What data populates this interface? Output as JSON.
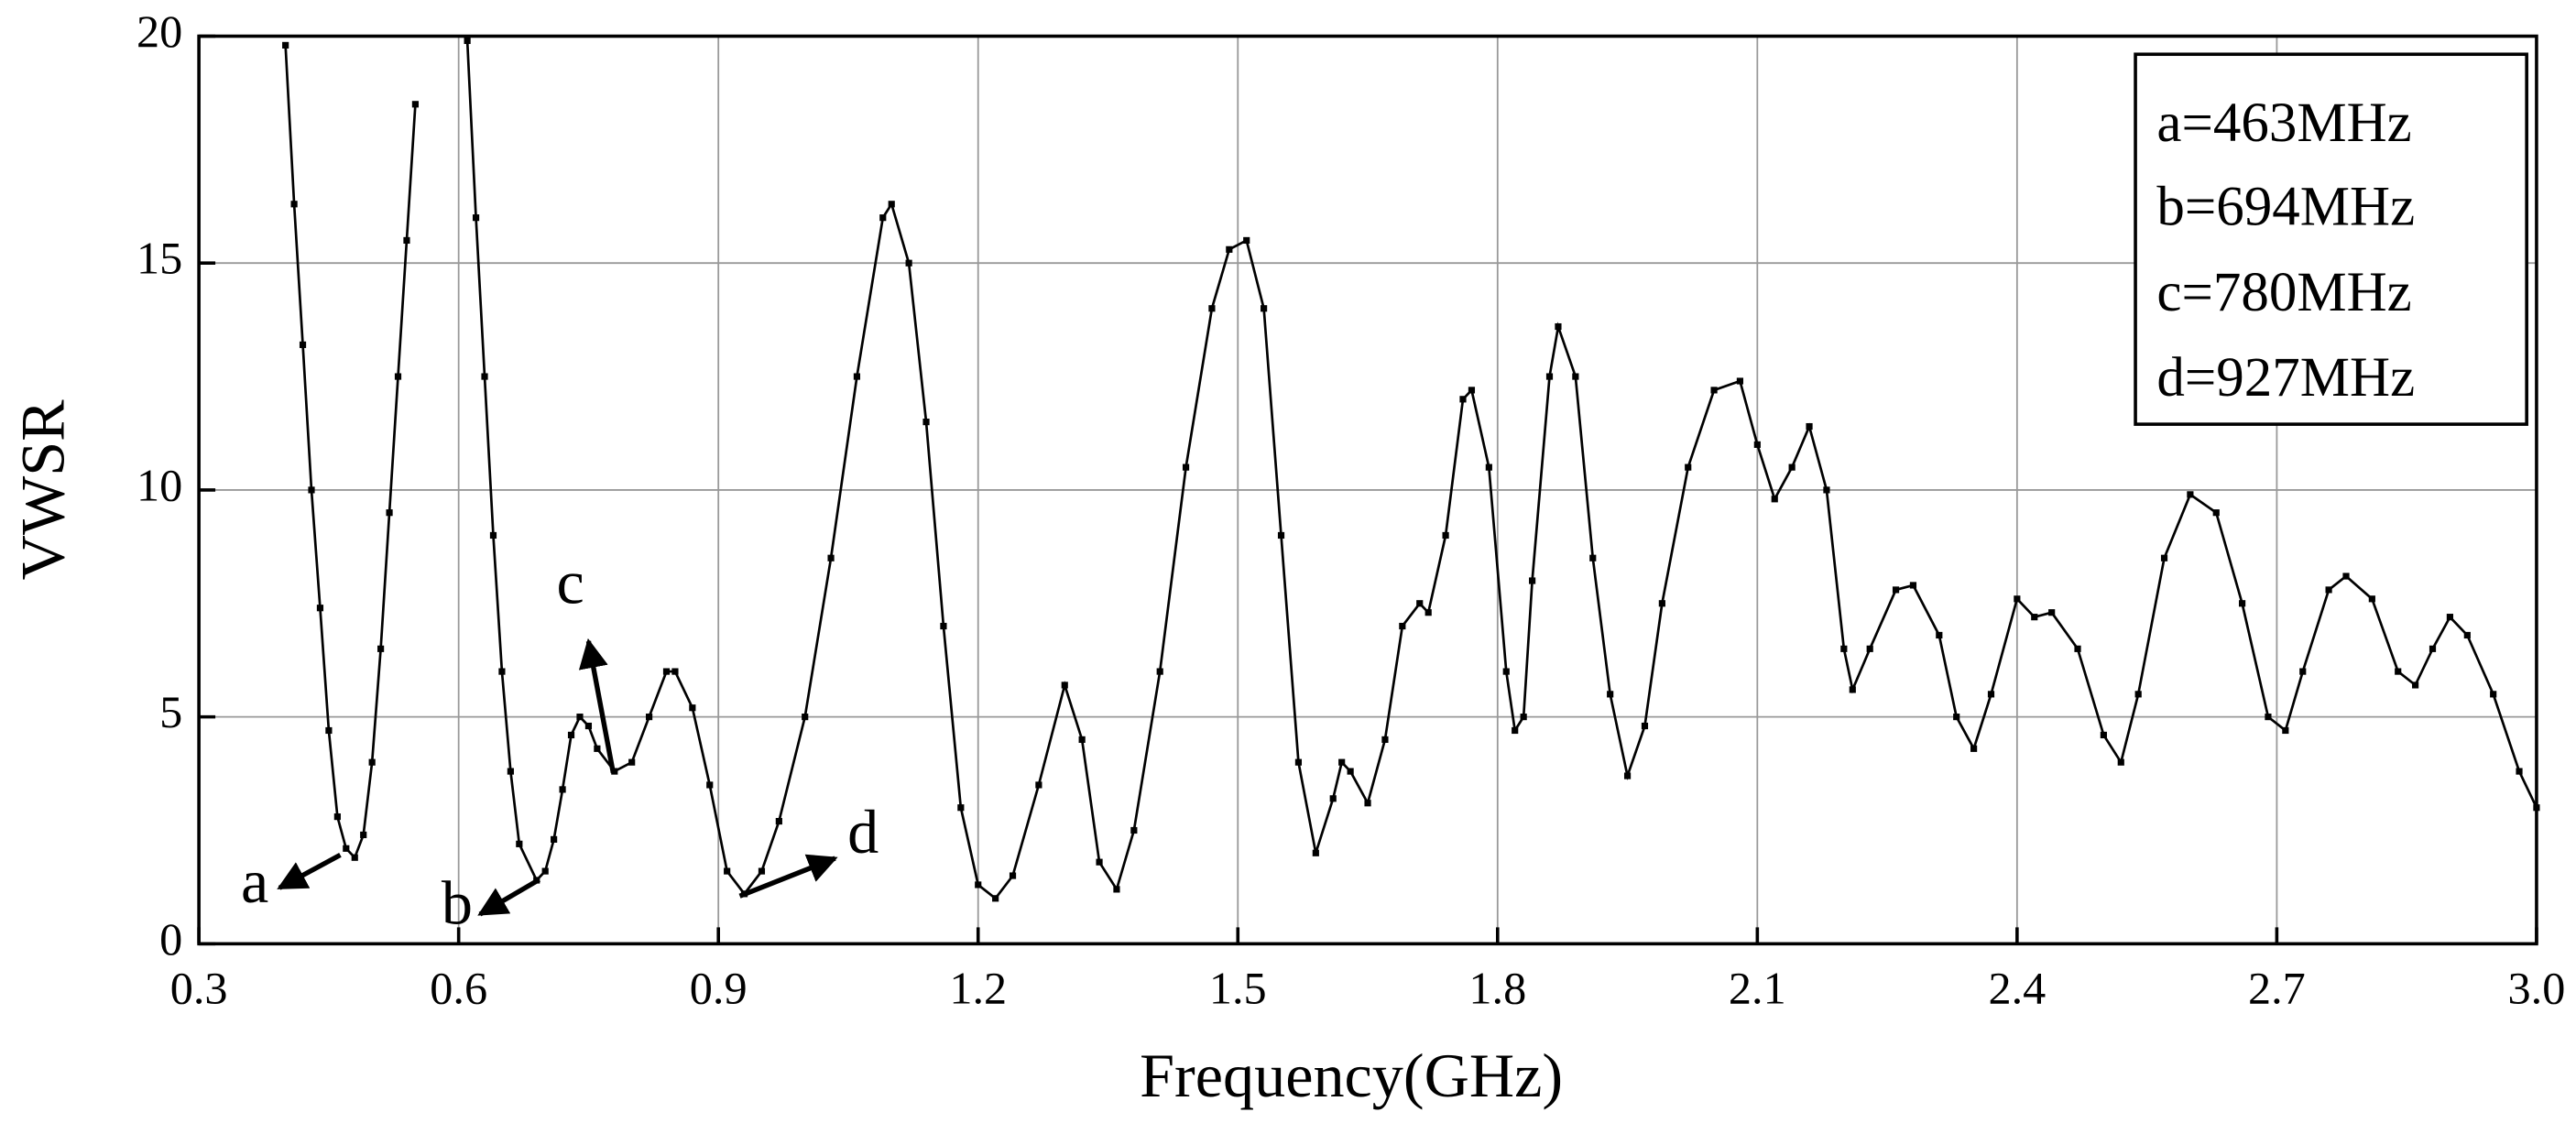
{
  "chart_data": {
    "type": "line",
    "xlabel": "Frequency(GHz)",
    "ylabel": "VWSR",
    "xlim": [
      0.3,
      3.0
    ],
    "ylim": [
      0,
      20
    ],
    "xticks": [
      0.3,
      0.6,
      0.9,
      1.2,
      1.5,
      1.8,
      2.1,
      2.4,
      2.7,
      {
        "value": 3,
        "label": "3.0"
      }
    ],
    "yticks": [
      0,
      5,
      10,
      15,
      20
    ],
    "grid": true,
    "series": [
      {
        "color": "#000000",
        "x": [
          0.4,
          0.41,
          0.42,
          0.43,
          0.44,
          0.45,
          0.46,
          0.47,
          0.48,
          0.49,
          0.5,
          0.51,
          0.52,
          0.53,
          0.54,
          0.55,
          0.58,
          0.61,
          0.62,
          0.63,
          0.64,
          0.65,
          0.66,
          0.67,
          0.69,
          0.7,
          0.71,
          0.72,
          0.73,
          0.74,
          0.75,
          0.76,
          0.78,
          0.8,
          0.82,
          0.84,
          0.85,
          0.87,
          0.89,
          0.91,
          0.93,
          0.95,
          0.97,
          1.0,
          1.03,
          1.06,
          1.09,
          1.1,
          1.12,
          1.14,
          1.16,
          1.18,
          1.2,
          1.22,
          1.24,
          1.27,
          1.3,
          1.32,
          1.34,
          1.36,
          1.38,
          1.41,
          1.44,
          1.47,
          1.49,
          1.51,
          1.53,
          1.55,
          1.57,
          1.59,
          1.61,
          1.62,
          1.63,
          1.65,
          1.67,
          1.69,
          1.71,
          1.72,
          1.74,
          1.76,
          1.77,
          1.79,
          1.81,
          1.82,
          1.83,
          1.84,
          1.86,
          1.87,
          1.89,
          1.91,
          1.93,
          1.95,
          1.97,
          1.99,
          2.02,
          2.05,
          2.08,
          2.1,
          2.12,
          2.14,
          2.16,
          2.18,
          2.2,
          2.21,
          2.23,
          2.26,
          2.28,
          2.31,
          2.33,
          2.35,
          2.37,
          2.4,
          2.42,
          2.44,
          2.47,
          2.5,
          2.52,
          2.54,
          2.57,
          2.6,
          2.63,
          2.66,
          2.69,
          2.71,
          2.73,
          2.76,
          2.78,
          2.81,
          2.84,
          2.86,
          2.88,
          2.9,
          2.92,
          2.95,
          2.98,
          3.0
        ],
        "values": [
          19.8,
          16.3,
          13.2,
          10,
          7.4,
          4.7,
          2.8,
          2.1,
          1.9,
          2.4,
          4.0,
          6.5,
          9.5,
          12.5,
          15.5,
          18.5,
          null,
          19.9,
          16,
          12.5,
          9,
          6,
          3.8,
          2.2,
          1.4,
          1.6,
          2.3,
          3.4,
          4.6,
          5.0,
          4.8,
          4.3,
          3.8,
          4.0,
          5.0,
          6.0,
          6.0,
          5.2,
          3.5,
          1.6,
          1.1,
          1.6,
          2.7,
          5.0,
          8.5,
          12.5,
          16.0,
          16.3,
          15.0,
          11.5,
          7.0,
          3.0,
          1.3,
          1.0,
          1.5,
          3.5,
          5.7,
          4.5,
          1.8,
          1.2,
          2.5,
          6.0,
          10.5,
          14.0,
          15.3,
          15.5,
          14.0,
          9.0,
          4.0,
          2.0,
          3.2,
          4.0,
          3.8,
          3.1,
          4.5,
          7.0,
          7.5,
          7.3,
          9.0,
          12.0,
          12.2,
          10.5,
          6.0,
          4.7,
          5.0,
          8.0,
          12.5,
          13.6,
          12.5,
          8.5,
          5.5,
          3.7,
          4.8,
          7.5,
          10.5,
          12.2,
          12.4,
          11.0,
          9.8,
          10.5,
          11.4,
          10.0,
          6.5,
          5.6,
          6.5,
          7.8,
          7.9,
          6.8,
          5.0,
          4.3,
          5.5,
          7.6,
          7.2,
          7.3,
          6.5,
          4.6,
          4.0,
          5.5,
          8.5,
          9.9,
          9.5,
          7.5,
          5.0,
          4.7,
          6.0,
          7.8,
          8.1,
          7.6,
          6.0,
          5.7,
          6.5,
          7.2,
          6.8,
          5.5,
          3.8,
          3.0
        ]
      }
    ],
    "annotations": [
      "a",
      "b",
      "c",
      "d"
    ],
    "info_box": [
      "a=463MHz",
      "b=694MHz",
      "c=780MHz",
      "d=927MHz"
    ]
  }
}
